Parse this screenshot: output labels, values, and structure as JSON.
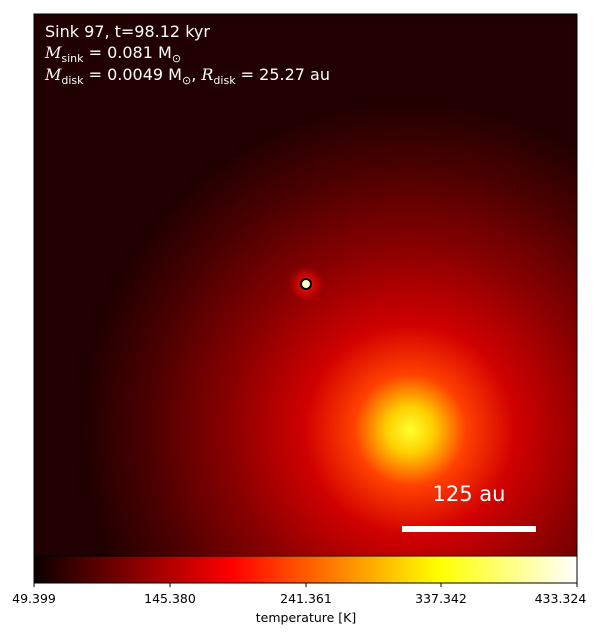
{
  "title_lines": {
    "line1": "Sink 97, t=98.12 kyr",
    "m_sink_label": "M",
    "m_sink_sub": "sink",
    "m_sink_value": " = 0.081 M",
    "m_sink_unit": "⊙",
    "m_disk_label": "M",
    "m_disk_sub": "disk",
    "m_disk_value": " = 0.0049 M",
    "m_disk_unit": "⊙",
    "r_sep": ", ",
    "r_disk_label": "R",
    "r_disk_sub": "disk",
    "r_disk_value": " = 25.27 au"
  },
  "scale_bar": {
    "label": "125 au"
  },
  "colorbar": {
    "label": "temperature [K]",
    "ticks": [
      "49.399",
      "145.380",
      "241.361",
      "337.342",
      "433.324"
    ],
    "colormap": "hot"
  },
  "colors": {
    "background_dark": "#1a0000",
    "mid_red": "#b00000",
    "hot_yellow": "#ffff20",
    "sink_marker": "#ffffcc"
  }
}
